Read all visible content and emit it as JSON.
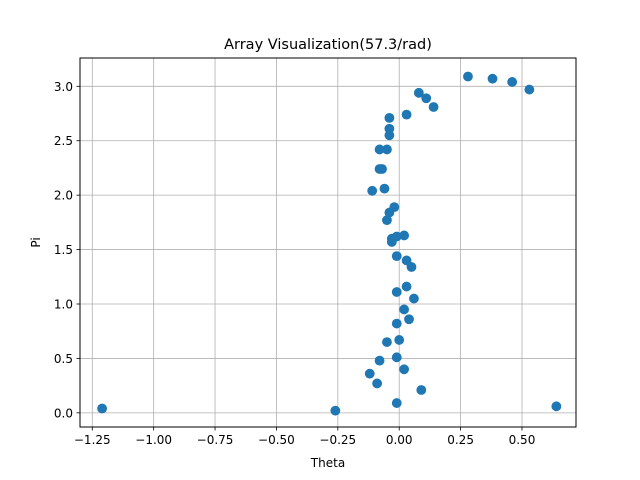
{
  "chart_data": {
    "type": "scatter",
    "title": "Array Visualization(57.3/rad)",
    "xlabel": "Theta",
    "ylabel": "Pi",
    "xlim": [
      -1.3,
      0.72
    ],
    "ylim": [
      -0.13,
      3.26
    ],
    "xticks": [
      -1.25,
      -1.0,
      -0.75,
      -0.5,
      -0.25,
      0.0,
      0.25,
      0.5
    ],
    "xtick_labels": [
      "−1.25",
      "−1.00",
      "−0.75",
      "−0.50",
      "−0.25",
      "0.00",
      "0.25",
      "0.50"
    ],
    "yticks": [
      0.0,
      0.5,
      1.0,
      1.5,
      2.0,
      2.5,
      3.0
    ],
    "ytick_labels": [
      "0.0",
      "0.5",
      "1.0",
      "1.5",
      "2.0",
      "2.5",
      "3.0"
    ],
    "grid": true,
    "marker_color": "#1f77b4",
    "points": [
      {
        "x": -1.21,
        "y": 0.04
      },
      {
        "x": -0.26,
        "y": 0.02
      },
      {
        "x": 0.64,
        "y": 0.06
      },
      {
        "x": -0.01,
        "y": 0.09
      },
      {
        "x": 0.09,
        "y": 0.21
      },
      {
        "x": -0.09,
        "y": 0.27
      },
      {
        "x": -0.12,
        "y": 0.36
      },
      {
        "x": 0.02,
        "y": 0.4
      },
      {
        "x": -0.08,
        "y": 0.48
      },
      {
        "x": -0.01,
        "y": 0.51
      },
      {
        "x": -0.05,
        "y": 0.65
      },
      {
        "x": 0.0,
        "y": 0.67
      },
      {
        "x": -0.01,
        "y": 0.82
      },
      {
        "x": 0.04,
        "y": 0.86
      },
      {
        "x": 0.02,
        "y": 0.95
      },
      {
        "x": 0.06,
        "y": 1.05
      },
      {
        "x": -0.01,
        "y": 1.11
      },
      {
        "x": 0.03,
        "y": 1.16
      },
      {
        "x": 0.05,
        "y": 1.34
      },
      {
        "x": 0.03,
        "y": 1.4
      },
      {
        "x": -0.01,
        "y": 1.44
      },
      {
        "x": -0.03,
        "y": 1.57
      },
      {
        "x": -0.03,
        "y": 1.6
      },
      {
        "x": -0.01,
        "y": 1.62
      },
      {
        "x": 0.02,
        "y": 1.63
      },
      {
        "x": -0.05,
        "y": 1.77
      },
      {
        "x": -0.04,
        "y": 1.84
      },
      {
        "x": -0.02,
        "y": 1.89
      },
      {
        "x": -0.11,
        "y": 2.04
      },
      {
        "x": -0.06,
        "y": 2.06
      },
      {
        "x": -0.08,
        "y": 2.24
      },
      {
        "x": -0.07,
        "y": 2.24
      },
      {
        "x": -0.08,
        "y": 2.42
      },
      {
        "x": -0.05,
        "y": 2.42
      },
      {
        "x": -0.04,
        "y": 2.55
      },
      {
        "x": -0.04,
        "y": 2.61
      },
      {
        "x": -0.04,
        "y": 2.71
      },
      {
        "x": 0.03,
        "y": 2.74
      },
      {
        "x": 0.14,
        "y": 2.81
      },
      {
        "x": 0.11,
        "y": 2.89
      },
      {
        "x": 0.08,
        "y": 2.94
      },
      {
        "x": 0.28,
        "y": 3.09
      },
      {
        "x": 0.38,
        "y": 3.07
      },
      {
        "x": 0.46,
        "y": 3.04
      },
      {
        "x": 0.53,
        "y": 2.97
      }
    ]
  }
}
